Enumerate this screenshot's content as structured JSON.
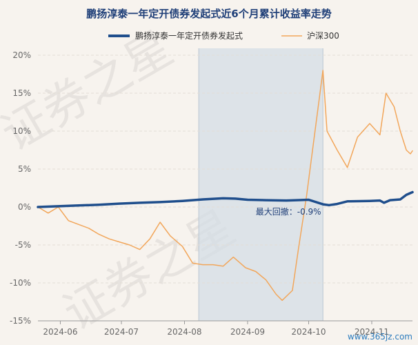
{
  "chart_data": {
    "type": "line",
    "title": "鹏扬淳泰一年定开债券发起式近6个月累计收益率走势",
    "xlabel": "",
    "ylabel": "",
    "ylim": [
      -15,
      20
    ],
    "yticks": [
      20,
      15,
      10,
      5,
      0,
      -5,
      -10,
      -15
    ],
    "ytick_labels": [
      "20%",
      "15%",
      "10%",
      "5%",
      "0%",
      "-5%",
      "-10%",
      "-15%"
    ],
    "xticks": [
      {
        "date": "2024-06-01",
        "label": "2024-06"
      },
      {
        "date": "2024-07-01",
        "label": "2024-07"
      },
      {
        "date": "2024-08-01",
        "label": "2024-08"
      },
      {
        "date": "2024-09-01",
        "label": "2024-09"
      },
      {
        "date": "2024-10-01",
        "label": "2024-10"
      },
      {
        "date": "2024-11-01",
        "label": "2024-11"
      }
    ],
    "xrange": [
      "2024-05-21",
      "2024-11-21"
    ],
    "grid": true,
    "legend_position": "top-center",
    "series": [
      {
        "name": "鹏扬淳泰一年定开债券发起式",
        "color": "#1f4e8c",
        "points": [
          [
            "2024-05-21",
            0.0
          ],
          [
            "2024-05-31",
            0.1
          ],
          [
            "2024-06-10",
            0.2
          ],
          [
            "2024-06-20",
            0.3
          ],
          [
            "2024-06-30",
            0.45
          ],
          [
            "2024-07-10",
            0.55
          ],
          [
            "2024-07-20",
            0.65
          ],
          [
            "2024-07-31",
            0.8
          ],
          [
            "2024-08-10",
            1.0
          ],
          [
            "2024-08-20",
            1.15
          ],
          [
            "2024-08-26",
            1.1
          ],
          [
            "2024-09-01",
            0.95
          ],
          [
            "2024-09-10",
            0.9
          ],
          [
            "2024-09-20",
            0.85
          ],
          [
            "2024-09-25",
            0.9
          ],
          [
            "2024-10-01",
            0.95
          ],
          [
            "2024-10-08",
            0.35
          ],
          [
            "2024-10-11",
            0.25
          ],
          [
            "2024-10-15",
            0.4
          ],
          [
            "2024-10-20",
            0.75
          ],
          [
            "2024-10-31",
            0.8
          ],
          [
            "2024-11-05",
            0.85
          ],
          [
            "2024-11-07",
            0.55
          ],
          [
            "2024-11-10",
            0.9
          ],
          [
            "2024-11-15",
            1.0
          ],
          [
            "2024-11-18",
            1.6
          ],
          [
            "2024-11-21",
            1.95
          ]
        ]
      },
      {
        "name": "沪深300",
        "color": "#f2a65a",
        "points": [
          [
            "2024-05-21",
            0.0
          ],
          [
            "2024-05-26",
            -0.8
          ],
          [
            "2024-05-31",
            0.0
          ],
          [
            "2024-06-05",
            -1.8
          ],
          [
            "2024-06-10",
            -2.3
          ],
          [
            "2024-06-15",
            -2.8
          ],
          [
            "2024-06-20",
            -3.6
          ],
          [
            "2024-06-25",
            -4.2
          ],
          [
            "2024-06-30",
            -4.6
          ],
          [
            "2024-07-05",
            -5.0
          ],
          [
            "2024-07-10",
            -5.6
          ],
          [
            "2024-07-15",
            -4.2
          ],
          [
            "2024-07-20",
            -2.0
          ],
          [
            "2024-07-25",
            -3.8
          ],
          [
            "2024-07-31",
            -5.2
          ],
          [
            "2024-08-05",
            -7.4
          ],
          [
            "2024-08-10",
            -7.6
          ],
          [
            "2024-08-15",
            -7.6
          ],
          [
            "2024-08-20",
            -7.8
          ],
          [
            "2024-08-25",
            -6.6
          ],
          [
            "2024-08-31",
            -8.0
          ],
          [
            "2024-09-05",
            -8.5
          ],
          [
            "2024-09-10",
            -9.6
          ],
          [
            "2024-09-15",
            -11.5
          ],
          [
            "2024-09-18",
            -12.3
          ],
          [
            "2024-09-23",
            -11.0
          ],
          [
            "2024-09-26",
            -5.5
          ],
          [
            "2024-09-30",
            1.5
          ],
          [
            "2024-10-08",
            18.0
          ],
          [
            "2024-10-10",
            10.0
          ],
          [
            "2024-10-15",
            7.5
          ],
          [
            "2024-10-20",
            5.2
          ],
          [
            "2024-10-25",
            9.2
          ],
          [
            "2024-10-31",
            11.0
          ],
          [
            "2024-11-05",
            9.5
          ],
          [
            "2024-11-08",
            15.0
          ],
          [
            "2024-11-12",
            13.2
          ],
          [
            "2024-11-15",
            10.0
          ],
          [
            "2024-11-18",
            7.5
          ],
          [
            "2024-11-20",
            7.0
          ],
          [
            "2024-11-21",
            7.4
          ]
        ]
      }
    ],
    "shaded_region": {
      "start": "2024-08-08",
      "end": "2024-10-08",
      "label": "最大回撤：-0.9%",
      "label_at": [
        "2024-09-05",
        -0.2
      ]
    }
  },
  "watermark": {
    "text": "证券之星"
  },
  "site_mark": {
    "text": "www.365jz.com"
  }
}
